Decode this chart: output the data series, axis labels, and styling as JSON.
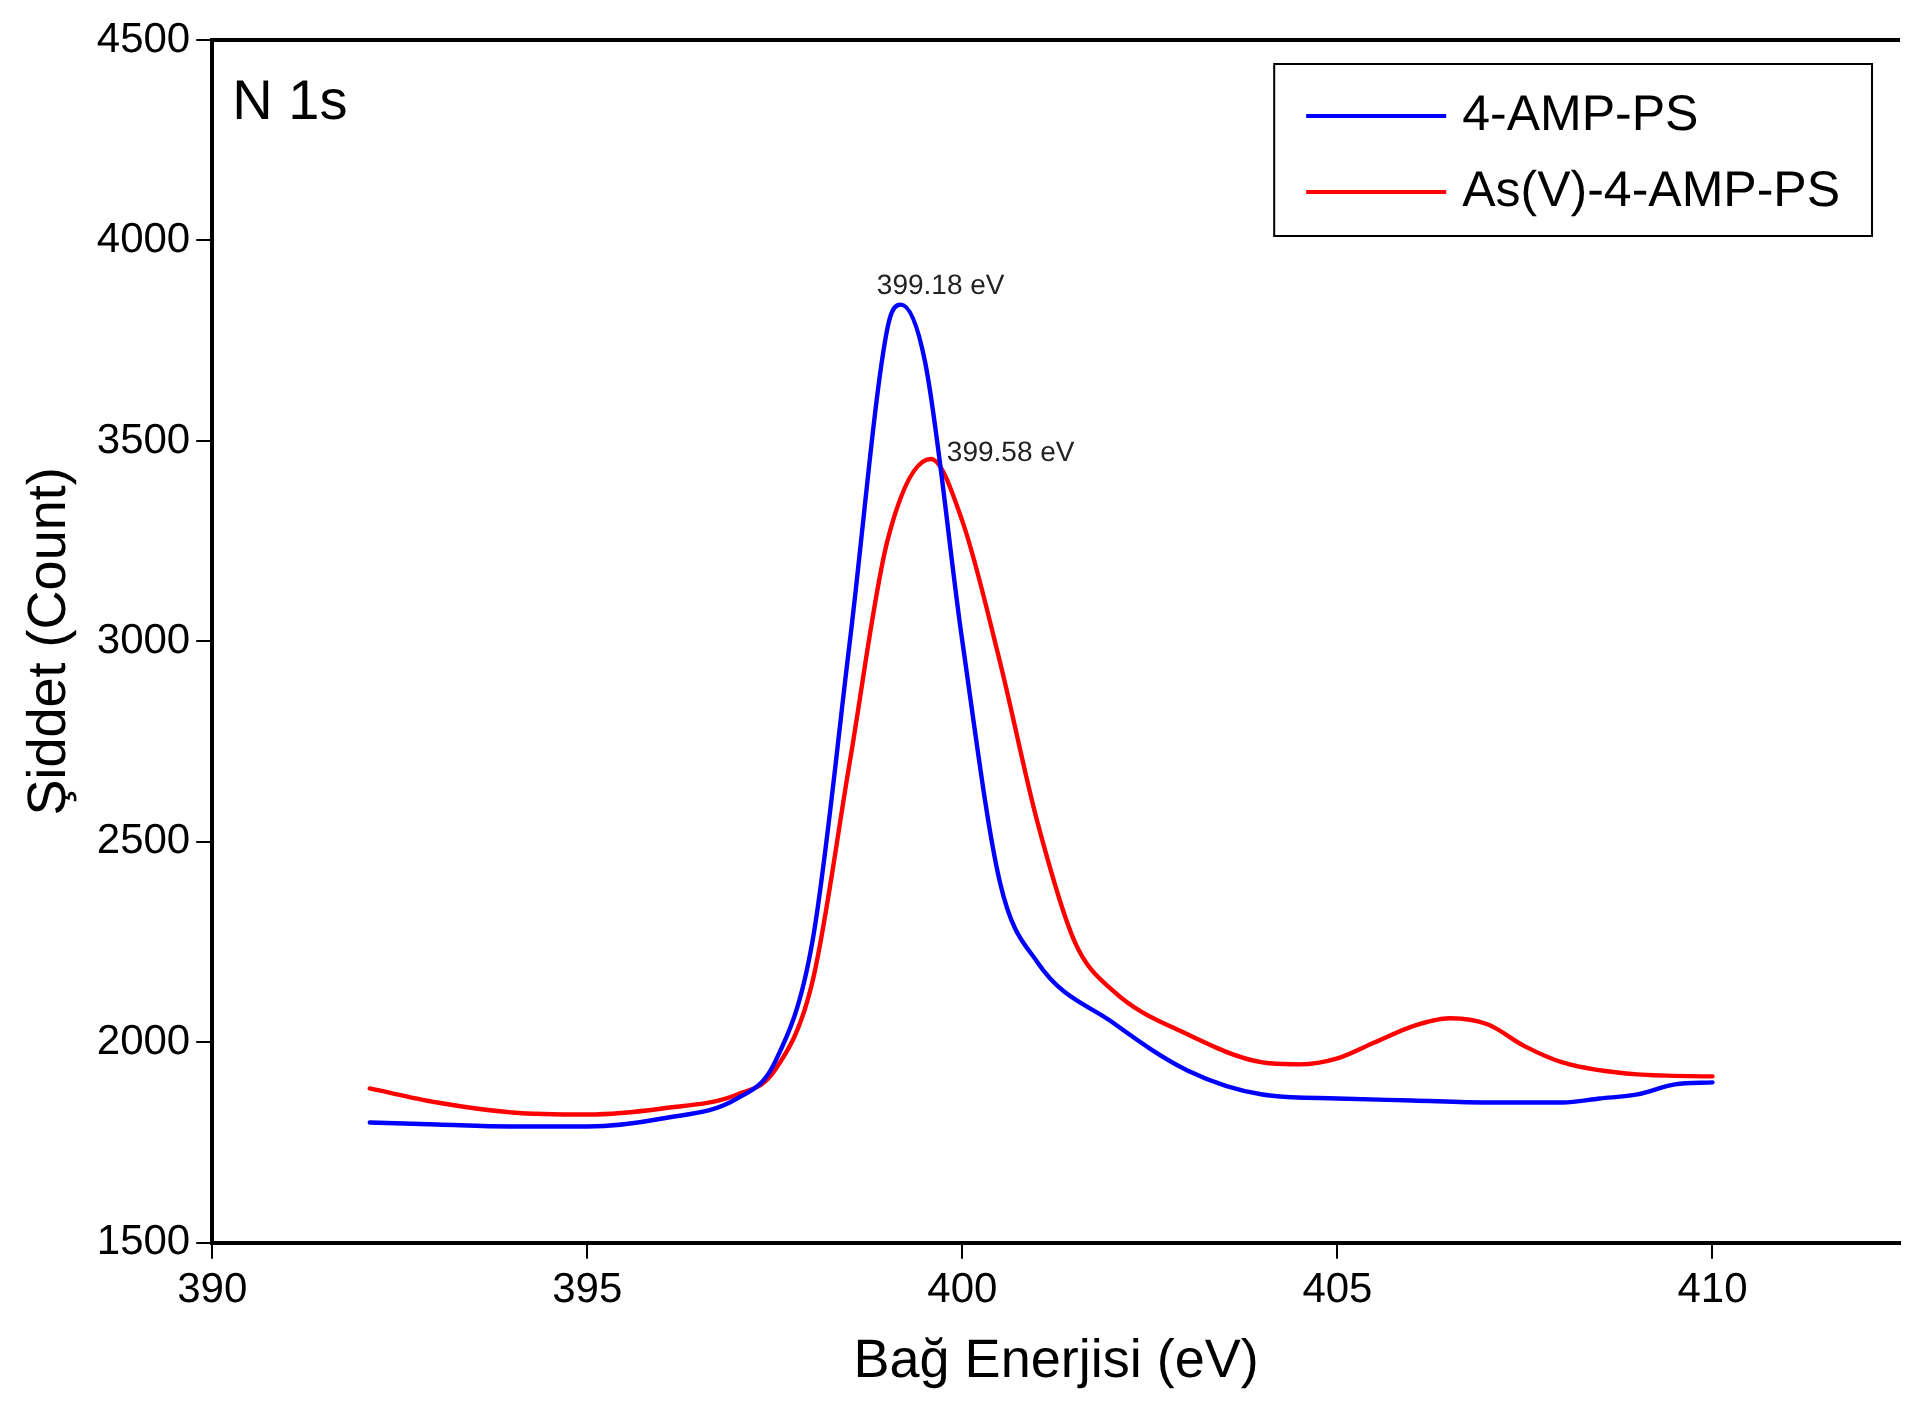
{
  "chart_data": {
    "type": "line",
    "xlabel": "Bağ Enerjisi (eV)",
    "ylabel": "Şiddet (Count)",
    "xlim": [
      390,
      412.5
    ],
    "xticks": [
      390,
      395,
      400,
      405,
      410
    ],
    "ylim": [
      1500,
      4500
    ],
    "yticks": [
      1500,
      2000,
      2500,
      3000,
      3500,
      4000,
      4500
    ],
    "grid": false,
    "legend": "top right",
    "marker": "none",
    "line_style": "solid",
    "annotations": [
      "N 1s",
      {
        "text": "399.18 eV",
        "x": 399.18,
        "y": 3840
      },
      {
        "text": "399.58 eV",
        "x": 399.58,
        "y": 3455
      }
    ],
    "series": [
      {
        "name": "4-AMP-PS",
        "color": "#0000ff",
        "x": [
          392.1,
          393,
          394,
          394.5,
          395,
          396,
          397,
          397.5,
          398,
          398.5,
          399,
          399.18,
          399.5,
          400,
          400.5,
          401,
          402,
          403,
          404,
          405,
          406,
          407,
          408,
          408.5,
          409,
          409.5,
          410
        ],
        "values": [
          1800,
          1795,
          1790,
          1790,
          1790,
          1810,
          1860,
          1950,
          2250,
          3000,
          3780,
          3840,
          3700,
          3000,
          2400,
          2200,
          2050,
          1930,
          1870,
          1860,
          1855,
          1850,
          1850,
          1860,
          1870,
          1895,
          1900
        ]
      },
      {
        "name": "As(V)-4-AMP-PS",
        "color": "#ff0000",
        "x": [
          392.1,
          393,
          394,
          395,
          396,
          397,
          397.5,
          398,
          398.5,
          399,
          399.58,
          400,
          400.5,
          401,
          401.5,
          402,
          403,
          404,
          404.5,
          405,
          405.5,
          406,
          406.5,
          407,
          407.5,
          408,
          409,
          410
        ],
        "values": [
          1885,
          1850,
          1825,
          1820,
          1835,
          1870,
          1930,
          2150,
          2700,
          3250,
          3455,
          3300,
          2950,
          2550,
          2250,
          2130,
          2020,
          1950,
          1945,
          1960,
          2000,
          2040,
          2060,
          2045,
          1990,
          1950,
          1920,
          1915
        ]
      }
    ]
  }
}
